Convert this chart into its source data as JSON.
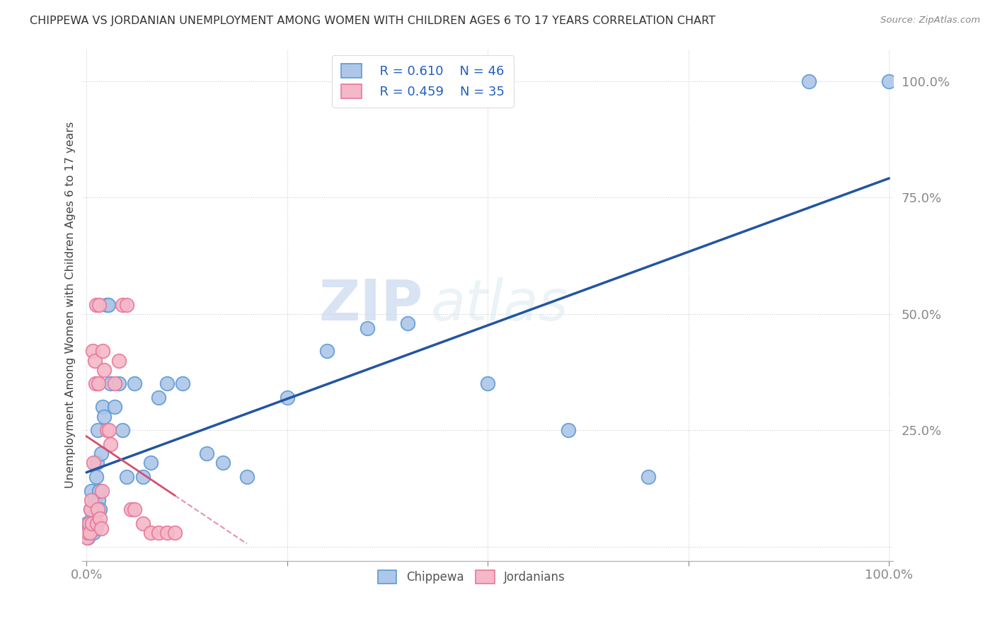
{
  "title": "CHIPPEWA VS JORDANIAN UNEMPLOYMENT AMONG WOMEN WITH CHILDREN AGES 6 TO 17 YEARS CORRELATION CHART",
  "source": "Source: ZipAtlas.com",
  "ylabel": "Unemployment Among Women with Children Ages 6 to 17 years",
  "watermark_zip": "ZIP",
  "watermark_atlas": "atlas",
  "legend_chippewa_r": "R = 0.610",
  "legend_chippewa_n": "N = 46",
  "legend_jordanian_r": "R = 0.459",
  "legend_jordanian_n": "N = 35",
  "chippewa_color": "#aec6e8",
  "jordanian_color": "#f4b8c8",
  "chippewa_edge_color": "#5b9bd5",
  "jordanian_edge_color": "#e8789a",
  "chippewa_line_color": "#2155a0",
  "jordanian_line_color": "#d45070",
  "chippewa_x": [
    0.001,
    0.002,
    0.003,
    0.004,
    0.005,
    0.006,
    0.007,
    0.008,
    0.009,
    0.01,
    0.01,
    0.011,
    0.012,
    0.013,
    0.014,
    0.015,
    0.016,
    0.017,
    0.018,
    0.02,
    0.022,
    0.025,
    0.027,
    0.03,
    0.035,
    0.04,
    0.045,
    0.05,
    0.06,
    0.07,
    0.08,
    0.09,
    0.1,
    0.12,
    0.15,
    0.17,
    0.2,
    0.25,
    0.3,
    0.35,
    0.4,
    0.5,
    0.6,
    0.7,
    0.9,
    1.0
  ],
  "chippewa_y": [
    0.05,
    0.02,
    0.04,
    0.03,
    0.08,
    0.12,
    0.06,
    0.05,
    0.03,
    0.1,
    0.07,
    0.04,
    0.15,
    0.18,
    0.25,
    0.1,
    0.12,
    0.08,
    0.2,
    0.3,
    0.28,
    0.52,
    0.52,
    0.35,
    0.3,
    0.35,
    0.25,
    0.15,
    0.35,
    0.15,
    0.18,
    0.32,
    0.35,
    0.35,
    0.2,
    0.18,
    0.15,
    0.32,
    0.42,
    0.47,
    0.48,
    0.35,
    0.25,
    0.15,
    1.0,
    1.0
  ],
  "jordanian_x": [
    0.001,
    0.002,
    0.003,
    0.004,
    0.005,
    0.006,
    0.007,
    0.008,
    0.009,
    0.01,
    0.011,
    0.012,
    0.013,
    0.014,
    0.015,
    0.016,
    0.017,
    0.018,
    0.019,
    0.02,
    0.022,
    0.025,
    0.028,
    0.03,
    0.035,
    0.04,
    0.045,
    0.05,
    0.055,
    0.06,
    0.07,
    0.08,
    0.09,
    0.1,
    0.11
  ],
  "jordanian_y": [
    0.02,
    0.03,
    0.05,
    0.03,
    0.08,
    0.1,
    0.05,
    0.42,
    0.18,
    0.4,
    0.35,
    0.52,
    0.05,
    0.08,
    0.35,
    0.52,
    0.06,
    0.04,
    0.12,
    0.42,
    0.38,
    0.25,
    0.25,
    0.22,
    0.35,
    0.4,
    0.52,
    0.52,
    0.08,
    0.08,
    0.05,
    0.03,
    0.03,
    0.03,
    0.03
  ],
  "xlim": [
    -0.005,
    1.005
  ],
  "ylim": [
    -0.03,
    1.07
  ],
  "xticks": [
    0.0,
    0.25,
    0.5,
    0.75,
    1.0
  ],
  "xtick_labels": [
    "0.0%",
    "",
    "",
    "",
    "100.0%"
  ],
  "yticks": [
    0.0,
    0.25,
    0.5,
    0.75,
    1.0
  ],
  "ytick_labels": [
    "",
    "25.0%",
    "50.0%",
    "75.0%",
    "100.0%"
  ],
  "legend_bottom": [
    "Chippewa",
    "Jordanians"
  ]
}
